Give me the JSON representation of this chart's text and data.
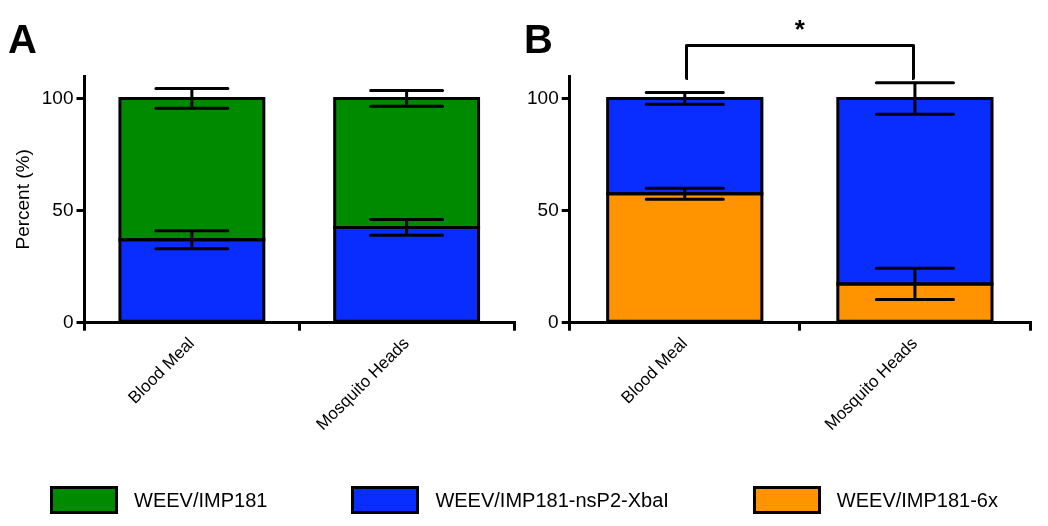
{
  "chart_data": [
    {
      "type": "bar",
      "title": "A",
      "ylabel": "Percent (%)",
      "categories": [
        "Blood Meal",
        "Mosquito Heads"
      ],
      "stacked": true,
      "ylim": [
        0,
        110
      ],
      "yticks": [
        0,
        50,
        100
      ],
      "grid": false,
      "legend": "bottom",
      "series": [
        {
          "name": "WEEV/IMP181-nsP2-XbaI",
          "color": "#0a2dff",
          "values": [
            37,
            42.5
          ],
          "errors": [
            4,
            3.5
          ]
        },
        {
          "name": "WEEV/IMP181",
          "color": "#008a00",
          "values": [
            63,
            57.5
          ],
          "errors": [
            4.4,
            3.5
          ]
        }
      ]
    },
    {
      "type": "bar",
      "title": "B",
      "categories": [
        "Blood Meal",
        "Mosquito Heads"
      ],
      "stacked": true,
      "ylim": [
        0,
        110
      ],
      "yticks": [
        0,
        50,
        100
      ],
      "grid": false,
      "legend": "bottom",
      "annotations": [
        "*"
      ],
      "series": [
        {
          "name": "WEEV/IMP181-6x",
          "color": "#ff9300",
          "values": [
            57.5,
            17.3
          ],
          "errors": [
            2.5,
            7
          ]
        },
        {
          "color": "#0a2dff",
          "values": [
            42.5,
            82.7
          ],
          "errors": [
            2.6,
            7
          ]
        }
      ]
    }
  ]
}
